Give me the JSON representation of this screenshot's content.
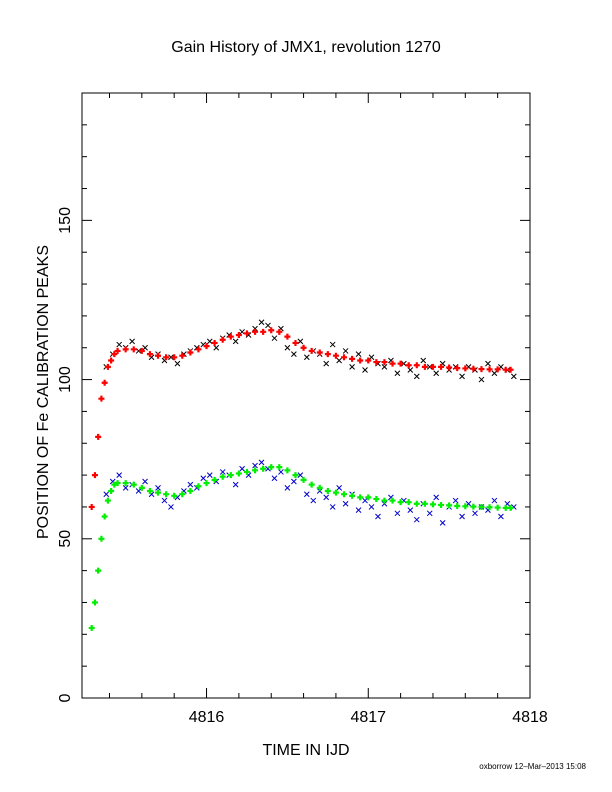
{
  "chart_data": {
    "type": "scatter",
    "title": "Gain History of JMX1, revolution 1270",
    "xlabel": "TIME IN IJD",
    "ylabel": "POSITION OF Fe CALIBRATION PEAKS",
    "xlim": [
      4815.23,
      4818.0
    ],
    "ylim": [
      0,
      190
    ],
    "x_ticks": [
      4816,
      4817,
      4818
    ],
    "y_ticks": [
      0,
      50,
      100,
      150
    ],
    "grid": false,
    "credit": "oxborrow 12–Mar–2013 15:08",
    "series": [
      {
        "marker": "x",
        "color": "#000000",
        "x": [
          4815.38,
          4815.42,
          4815.46,
          4815.5,
          4815.54,
          4815.58,
          4815.62,
          4815.66,
          4815.7,
          4815.74,
          4815.78,
          4815.82,
          4815.86,
          4815.9,
          4815.94,
          4815.98,
          4816.02,
          4816.06,
          4816.1,
          4816.14,
          4816.18,
          4816.22,
          4816.26,
          4816.3,
          4816.34,
          4816.38,
          4816.42,
          4816.46,
          4816.5,
          4816.54,
          4816.58,
          4816.62,
          4816.66,
          4816.7,
          4816.74,
          4816.78,
          4816.82,
          4816.86,
          4816.9,
          4816.94,
          4816.98,
          4817.02,
          4817.06,
          4817.1,
          4817.14,
          4817.18,
          4817.22,
          4817.26,
          4817.3,
          4817.34,
          4817.38,
          4817.42,
          4817.46,
          4817.5,
          4817.54,
          4817.58,
          4817.62,
          4817.66,
          4817.7,
          4817.74,
          4817.78,
          4817.82,
          4817.86,
          4817.9
        ],
        "y": [
          104,
          108,
          111,
          110,
          112,
          109,
          110,
          107,
          108,
          106,
          107,
          105,
          108,
          109,
          110,
          111,
          112,
          110,
          113,
          114,
          112,
          115,
          114,
          116,
          118,
          117,
          113,
          116,
          110,
          108,
          112,
          107,
          109,
          108,
          105,
          111,
          106,
          109,
          104,
          108,
          103,
          107,
          105,
          104,
          106,
          102,
          105,
          103,
          101,
          106,
          104,
          102,
          105,
          103,
          104,
          101,
          104,
          103,
          100,
          105,
          102,
          104,
          103,
          101
        ]
      },
      {
        "marker": "x",
        "color": "#0000cc",
        "x": [
          4815.38,
          4815.42,
          4815.46,
          4815.5,
          4815.54,
          4815.58,
          4815.62,
          4815.66,
          4815.7,
          4815.74,
          4815.78,
          4815.82,
          4815.86,
          4815.9,
          4815.94,
          4815.98,
          4816.02,
          4816.06,
          4816.1,
          4816.14,
          4816.18,
          4816.22,
          4816.26,
          4816.3,
          4816.34,
          4816.38,
          4816.42,
          4816.46,
          4816.5,
          4816.54,
          4816.58,
          4816.62,
          4816.66,
          4816.7,
          4816.74,
          4816.78,
          4816.82,
          4816.86,
          4816.9,
          4816.94,
          4816.98,
          4817.02,
          4817.06,
          4817.1,
          4817.14,
          4817.18,
          4817.22,
          4817.26,
          4817.3,
          4817.34,
          4817.38,
          4817.42,
          4817.46,
          4817.5,
          4817.54,
          4817.58,
          4817.62,
          4817.66,
          4817.7,
          4817.74,
          4817.78,
          4817.82,
          4817.86,
          4817.9
        ],
        "y": [
          64,
          68,
          70,
          66,
          67,
          65,
          68,
          64,
          66,
          62,
          60,
          63,
          65,
          67,
          66,
          69,
          70,
          68,
          71,
          70,
          67,
          72,
          70,
          73,
          74,
          72,
          69,
          71,
          66,
          68,
          70,
          64,
          62,
          65,
          63,
          60,
          66,
          61,
          64,
          59,
          62,
          60,
          57,
          61,
          63,
          58,
          62,
          59,
          56,
          61,
          58,
          63,
          55,
          60,
          62,
          57,
          61,
          58,
          60,
          59,
          62,
          57,
          61,
          60
        ]
      },
      {
        "marker": "+",
        "color": "#ff0000",
        "x": [
          4815.29,
          4815.31,
          4815.33,
          4815.35,
          4815.37,
          4815.39,
          4815.41,
          4815.43,
          4815.45,
          4815.5,
          4815.55,
          4815.6,
          4815.65,
          4815.7,
          4815.75,
          4815.8,
          4815.85,
          4815.9,
          4815.95,
          4816.0,
          4816.05,
          4816.1,
          4816.15,
          4816.2,
          4816.25,
          4816.3,
          4816.35,
          4816.4,
          4816.45,
          4816.5,
          4816.55,
          4816.6,
          4816.65,
          4816.7,
          4816.75,
          4816.8,
          4816.85,
          4816.9,
          4816.95,
          4817.0,
          4817.05,
          4817.1,
          4817.15,
          4817.2,
          4817.25,
          4817.3,
          4817.35,
          4817.4,
          4817.45,
          4817.5,
          4817.55,
          4817.6,
          4817.65,
          4817.7,
          4817.75,
          4817.8,
          4817.85,
          4817.88
        ],
        "y": [
          60,
          70,
          82,
          94,
          99,
          104,
          106,
          108,
          109,
          109.5,
          109.5,
          109,
          108,
          107.5,
          107,
          107,
          107.5,
          108.5,
          109.5,
          110.5,
          111.5,
          112.5,
          113.5,
          114,
          114.5,
          115,
          115,
          115.5,
          115,
          113.5,
          111.5,
          110,
          109,
          108.5,
          108,
          107.5,
          107,
          106.5,
          106,
          106,
          105.5,
          105.5,
          105,
          105,
          104.5,
          104.5,
          104,
          104,
          104,
          103.8,
          103.6,
          103.5,
          103.4,
          103.3,
          103.2,
          103.2,
          103.1,
          103.1
        ]
      },
      {
        "marker": "+",
        "color": "#00ee00",
        "x": [
          4815.29,
          4815.31,
          4815.33,
          4815.35,
          4815.37,
          4815.39,
          4815.41,
          4815.43,
          4815.45,
          4815.5,
          4815.55,
          4815.6,
          4815.65,
          4815.7,
          4815.75,
          4815.8,
          4815.85,
          4815.9,
          4815.95,
          4816.0,
          4816.05,
          4816.1,
          4816.15,
          4816.2,
          4816.25,
          4816.3,
          4816.35,
          4816.4,
          4816.45,
          4816.5,
          4816.55,
          4816.6,
          4816.65,
          4816.7,
          4816.75,
          4816.8,
          4816.85,
          4816.9,
          4816.95,
          4817.0,
          4817.05,
          4817.1,
          4817.15,
          4817.2,
          4817.25,
          4817.3,
          4817.35,
          4817.4,
          4817.45,
          4817.5,
          4817.55,
          4817.6,
          4817.65,
          4817.7,
          4817.75,
          4817.8,
          4817.85,
          4817.88
        ],
        "y": [
          22,
          30,
          40,
          50,
          57,
          62,
          65,
          67,
          67.5,
          67.5,
          67,
          66,
          65,
          64.5,
          64,
          63.5,
          64,
          65,
          66.5,
          67.5,
          68.5,
          69.5,
          70,
          70.5,
          71,
          71.5,
          72,
          72.5,
          72.5,
          71.5,
          70,
          68.5,
          67,
          66,
          65,
          64.5,
          64,
          63.5,
          63,
          63,
          62.5,
          62,
          62,
          61.5,
          61.5,
          61,
          61,
          60.8,
          60.6,
          60.5,
          60.3,
          60.2,
          60.1,
          60,
          59.9,
          59.8,
          59.7,
          59.7
        ]
      }
    ]
  }
}
